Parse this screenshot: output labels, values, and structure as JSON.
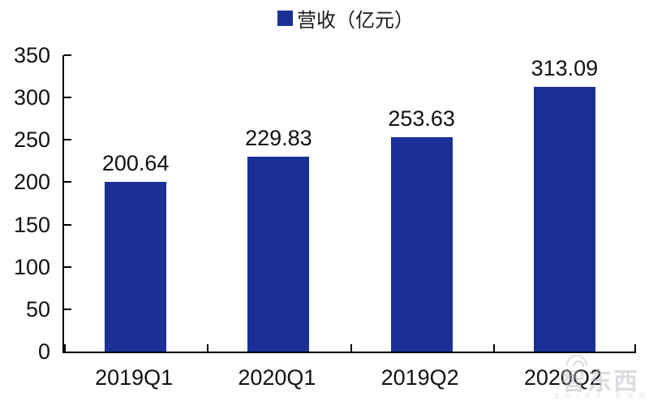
{
  "chart_data": {
    "type": "bar",
    "title": "",
    "legend_position": "top-center",
    "legend": [
      {
        "label": "营收（亿元）",
        "color": "#1b3095"
      }
    ],
    "categories": [
      "2019Q1",
      "2020Q1",
      "2019Q2",
      "2020Q2"
    ],
    "series": [
      {
        "name": "营收（亿元）",
        "values": [
          200.64,
          229.83,
          253.63,
          313.09
        ]
      }
    ],
    "value_labels": [
      "200.64",
      "229.83",
      "253.63",
      "313.09"
    ],
    "xlabel": "",
    "ylabel": "",
    "ylim": [
      0,
      350
    ],
    "yticks": [
      0,
      50,
      100,
      150,
      200,
      250,
      300,
      350
    ],
    "grid": false,
    "bar_color": "#1b3095",
    "axis_color": "#000000",
    "text_color": "#111111"
  },
  "watermark": {
    "text": "智东西",
    "subtext": "Z H I D X . C O M"
  }
}
